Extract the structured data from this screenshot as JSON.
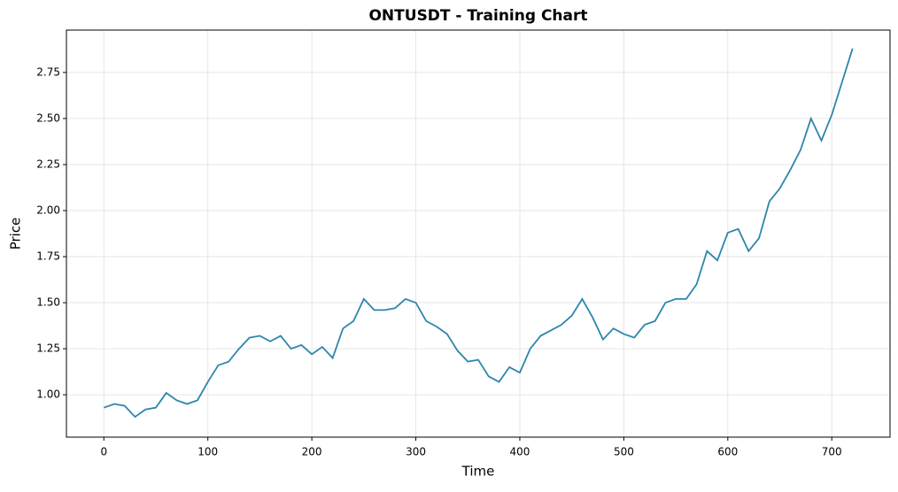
{
  "chart_data": {
    "type": "line",
    "title": "ONTUSDT - Training Chart",
    "x_label": "Time",
    "y_label": "Price",
    "x": [
      0,
      10,
      20,
      30,
      40,
      50,
      60,
      70,
      80,
      90,
      100,
      110,
      120,
      130,
      140,
      150,
      160,
      170,
      180,
      190,
      200,
      210,
      220,
      230,
      240,
      250,
      260,
      270,
      280,
      290,
      300,
      310,
      320,
      330,
      340,
      350,
      360,
      370,
      380,
      390,
      400,
      410,
      420,
      430,
      440,
      450,
      460,
      470,
      480,
      490,
      500,
      510,
      520,
      530,
      540,
      550,
      560,
      570,
      580,
      590,
      600,
      610,
      620,
      630,
      640,
      650,
      660,
      670,
      680,
      690,
      700,
      710,
      720
    ],
    "series": [
      {
        "name": "ONTUSDT",
        "color": "#2e86ab",
        "values": [
          0.93,
          0.95,
          0.94,
          0.88,
          0.92,
          0.93,
          1.01,
          0.97,
          0.95,
          0.97,
          1.07,
          1.16,
          1.18,
          1.25,
          1.31,
          1.32,
          1.29,
          1.32,
          1.25,
          1.27,
          1.22,
          1.26,
          1.2,
          1.36,
          1.4,
          1.52,
          1.46,
          1.46,
          1.47,
          1.52,
          1.5,
          1.4,
          1.37,
          1.33,
          1.24,
          1.18,
          1.19,
          1.1,
          1.07,
          1.15,
          1.12,
          1.25,
          1.32,
          1.35,
          1.38,
          1.43,
          1.52,
          1.42,
          1.3,
          1.36,
          1.33,
          1.31,
          1.38,
          1.4,
          1.5,
          1.52,
          1.52,
          1.6,
          1.78,
          1.73,
          1.88,
          1.9,
          1.78,
          1.85,
          2.05,
          2.12,
          2.22,
          2.33,
          2.5,
          2.38,
          2.52,
          2.7,
          2.88
        ]
      }
    ],
    "xlim": [
      -36,
      756
    ],
    "ylim": [
      0.77,
      2.98
    ],
    "xticks": [
      0,
      100,
      200,
      300,
      400,
      500,
      600,
      700
    ],
    "yticks": [
      {
        "value": 1,
        "label": "1.00"
      },
      {
        "value": 1.25,
        "label": "1.25"
      },
      {
        "value": 1.5,
        "label": "1.50"
      },
      {
        "value": 1.75,
        "label": "1.75"
      },
      {
        "value": 2,
        "label": "2.00"
      },
      {
        "value": 2.25,
        "label": "2.25"
      },
      {
        "value": 2.5,
        "label": "2.50"
      },
      {
        "value": 2.75,
        "label": "2.75"
      }
    ],
    "grid": true
  }
}
